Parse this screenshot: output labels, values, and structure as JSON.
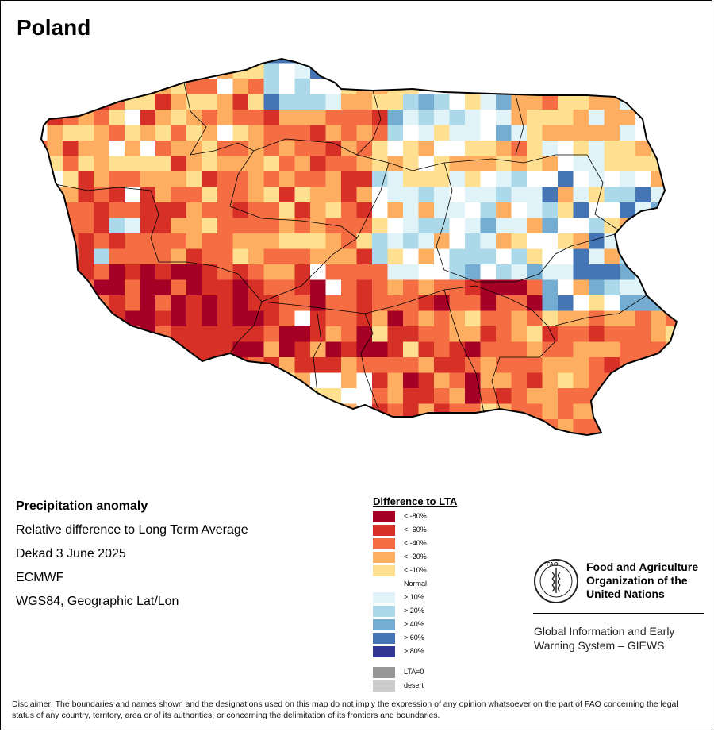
{
  "map_title": "Poland",
  "info": {
    "variable": "Precipitation anomaly",
    "description": "Relative difference to Long Term Average",
    "period": "Dekad 3 June 2025",
    "source": "ECMWF",
    "projection": "WGS84, Geographic Lat/Lon"
  },
  "legend": {
    "title": "Difference to LTA",
    "classes": [
      {
        "label": "< -80%",
        "color": "#a50026"
      },
      {
        "label": "< -60%",
        "color": "#d73027"
      },
      {
        "label": "< -40%",
        "color": "#f46d43"
      },
      {
        "label": "< -20%",
        "color": "#fdae61"
      },
      {
        "label": "< -10%",
        "color": "#fee090"
      },
      {
        "label": "Normal",
        "color": "#ffffff"
      },
      {
        "label": "> 10%",
        "color": "#e0f3f8"
      },
      {
        "label": "> 20%",
        "color": "#abd9e9"
      },
      {
        "label": "> 40%",
        "color": "#74add1"
      },
      {
        "label": "> 60%",
        "color": "#4575b4"
      },
      {
        "label": "> 80%",
        "color": "#313695"
      }
    ],
    "special": [
      {
        "label": "LTA=0",
        "color": "#969696"
      },
      {
        "label": "desert",
        "color": "#cccccc"
      }
    ]
  },
  "organization": {
    "name": "Food and Agriculture\nOrganization of the\nUnited Nations",
    "logo_text": "FIAT PANIS",
    "logo_letters": "FAO",
    "system": "Global Information and Early\nWarning System – GIEWS"
  },
  "disclaimer": "Disclaimer: The boundaries and names shown and the designations used on this map do not imply the expression of any opinion whatsoever on the part of FAO concerning the legal status of any country, territory, area or of its authorities, or concerning the delimitation of its frontiers and boundaries."
}
